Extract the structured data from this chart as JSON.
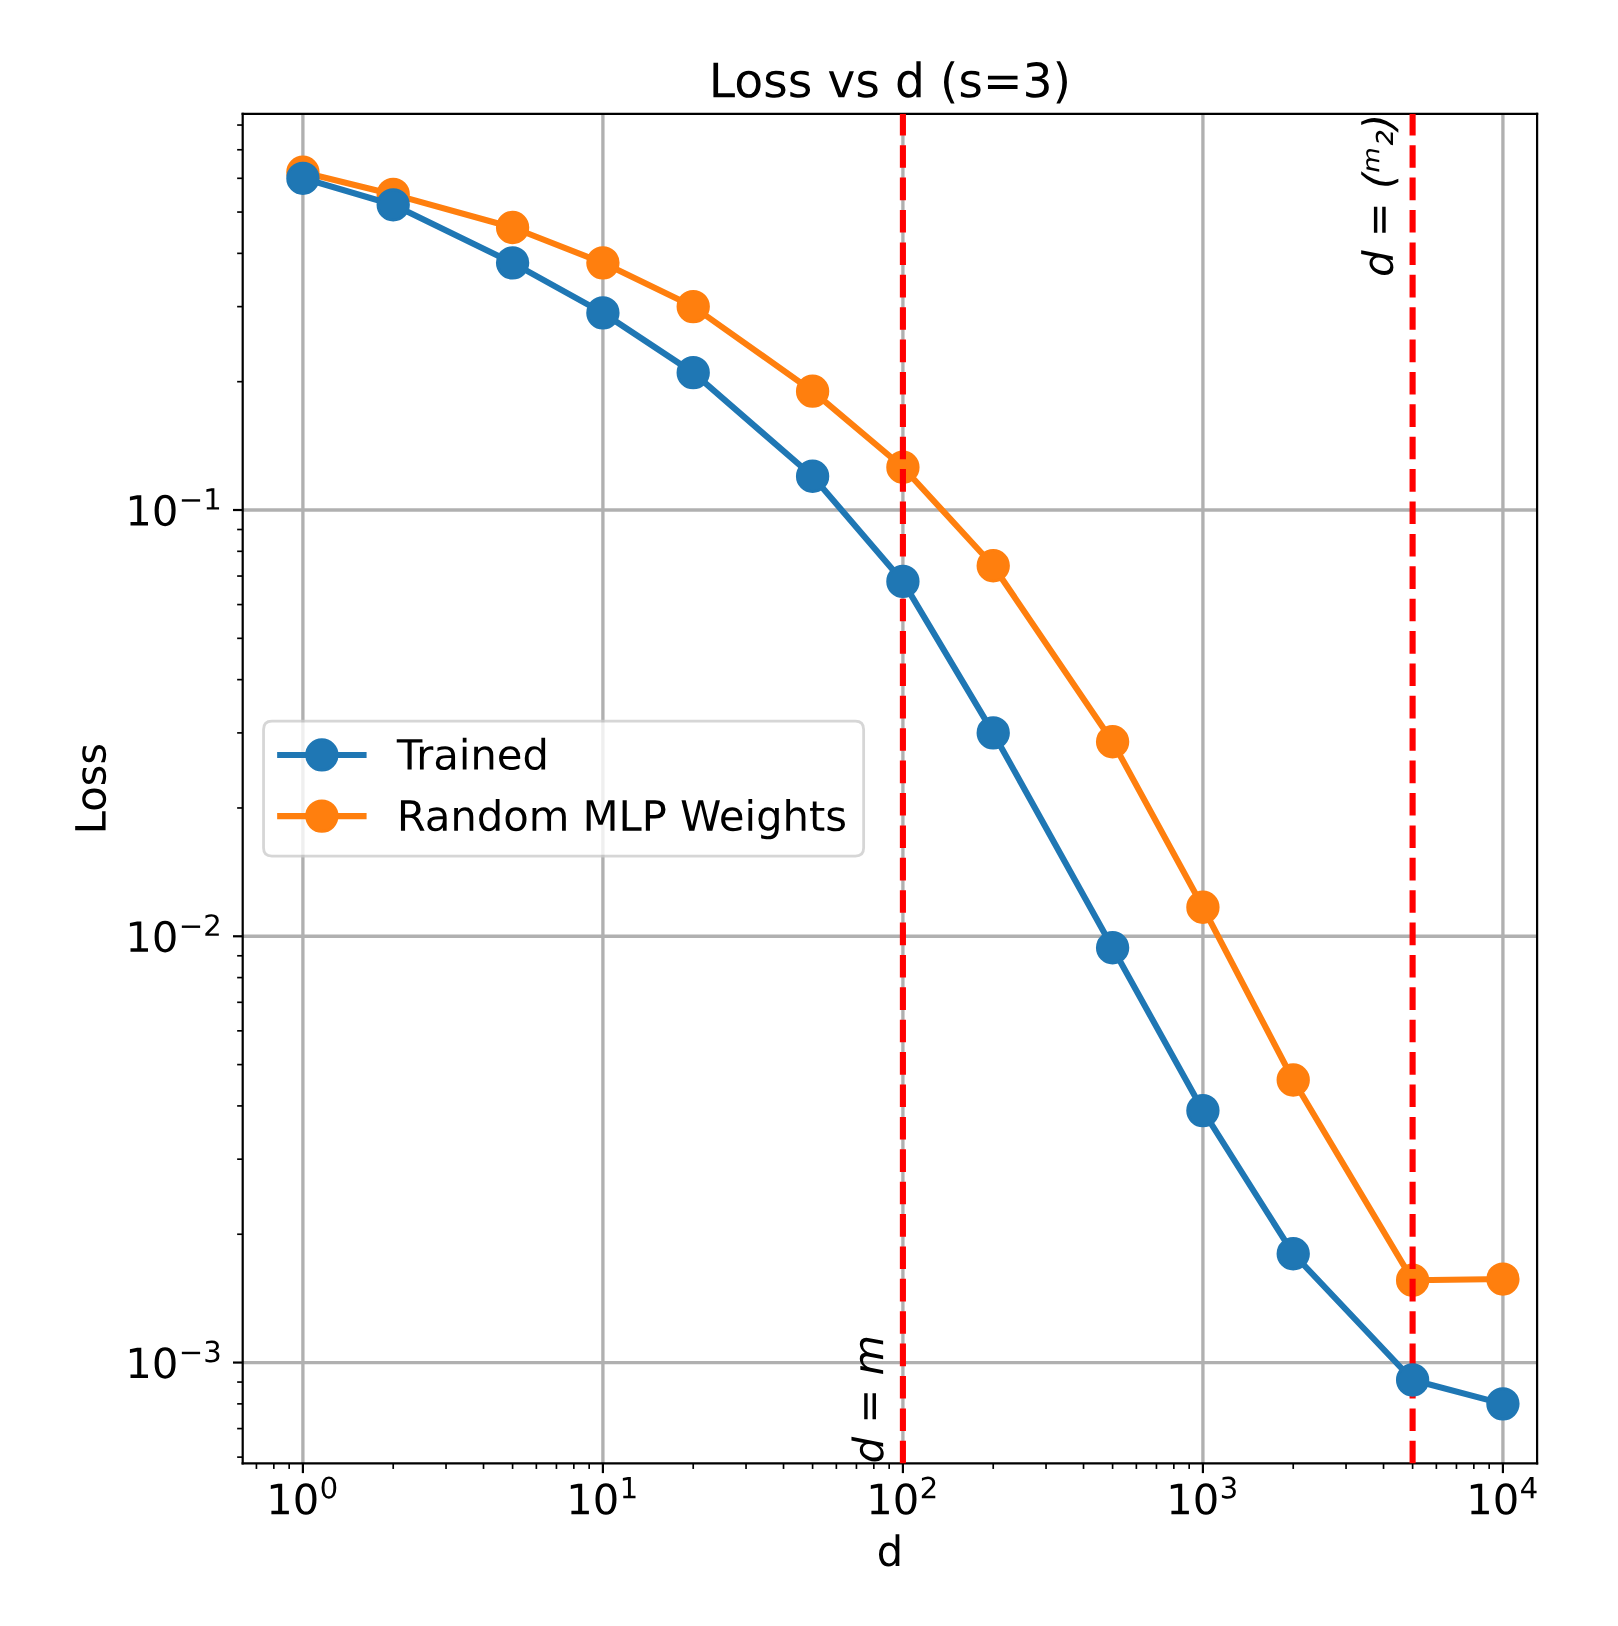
{
  "chart_data": {
    "type": "line",
    "title": "Loss vs d (s=3)",
    "xlabel": "d",
    "ylabel": "Loss",
    "x": [
      1,
      2,
      5,
      10,
      20,
      50,
      100,
      200,
      500,
      1000,
      2000,
      5000,
      10000
    ],
    "series": [
      {
        "name": "Trained",
        "color": "#1f77b4",
        "values": [
          0.6,
          0.52,
          0.38,
          0.29,
          0.21,
          0.12,
          0.068,
          0.03,
          0.0094,
          0.0039,
          0.0018,
          0.00091,
          0.0008
        ]
      },
      {
        "name": "Random MLP Weights",
        "color": "#ff7f0e",
        "values": [
          0.62,
          0.55,
          0.46,
          0.38,
          0.3,
          0.19,
          0.126,
          0.074,
          0.0286,
          0.0117,
          0.0046,
          0.00156,
          0.00157
        ]
      }
    ],
    "log": "xy",
    "xlim": [
      0.63,
      13000
    ],
    "ylim": [
      0.00058,
      0.85
    ],
    "xticks": [
      {
        "value": 1,
        "label": "10$^{0}$"
      },
      {
        "value": 10,
        "label": "10$^{1}$"
      },
      {
        "value": 100,
        "label": "10$^{2}$"
      },
      {
        "value": 1000,
        "label": "10$^{3}$"
      },
      {
        "value": 10000,
        "label": "10$^{4}$"
      }
    ],
    "yticks": [
      {
        "value": 0.001,
        "label": "10$^{−3}$"
      },
      {
        "value": 0.01,
        "label": "10$^{−2}$"
      },
      {
        "value": 0.1,
        "label": "10$^{−1}$"
      }
    ],
    "ref_lines": [
      {
        "axis": "x",
        "value": 100,
        "label": "d = m",
        "color": "#ff0000",
        "line_style": "dashed"
      },
      {
        "axis": "x",
        "value": 5000,
        "label": "d = (ᵐ₂)",
        "color": "#ff0000",
        "line_style": "dashed"
      }
    ],
    "grid": true,
    "legend": "left",
    "marker": "circle",
    "line_style": "solid"
  }
}
